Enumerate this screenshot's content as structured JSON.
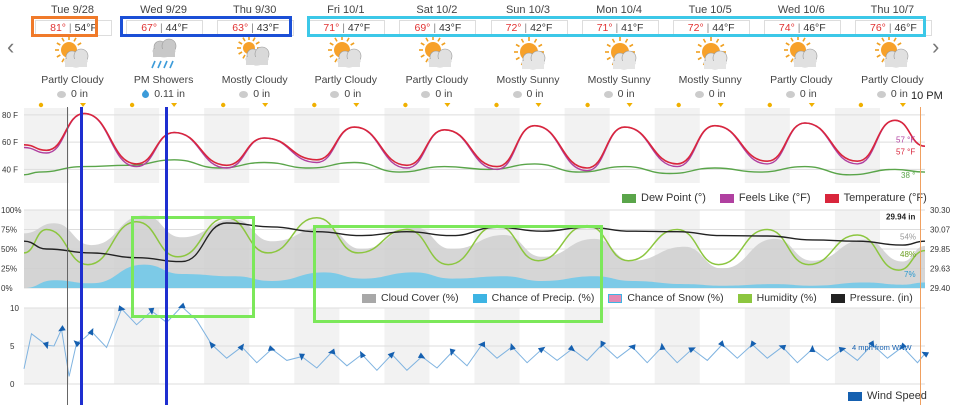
{
  "days": [
    {
      "date": "Tue 9/28",
      "hi": "81°",
      "lo": "54°F",
      "cond": "Partly Cloudy",
      "precip": "0 in",
      "icon": "partly-cloudy-icon"
    },
    {
      "date": "Wed 9/29",
      "hi": "67°",
      "lo": "44°F",
      "cond": "PM Showers",
      "precip": "0.11 in",
      "icon": "showers-icon"
    },
    {
      "date": "Thu 9/30",
      "hi": "63°",
      "lo": "43°F",
      "cond": "Mostly Cloudy",
      "precip": "0 in",
      "icon": "mostly-cloudy-icon"
    },
    {
      "date": "Fri 10/1",
      "hi": "71°",
      "lo": "47°F",
      "cond": "Partly Cloudy",
      "precip": "0 in",
      "icon": "partly-cloudy-icon"
    },
    {
      "date": "Sat 10/2",
      "hi": "69°",
      "lo": "43°F",
      "cond": "Partly Cloudy",
      "precip": "0 in",
      "icon": "partly-cloudy-icon"
    },
    {
      "date": "Sun 10/3",
      "hi": "72°",
      "lo": "42°F",
      "cond": "Mostly Sunny",
      "precip": "0 in",
      "icon": "mostly-sunny-icon"
    },
    {
      "date": "Mon 10/4",
      "hi": "71°",
      "lo": "41°F",
      "cond": "Mostly Sunny",
      "precip": "0 in",
      "icon": "mostly-sunny-icon"
    },
    {
      "date": "Tue 10/5",
      "hi": "72°",
      "lo": "44°F",
      "cond": "Mostly Sunny",
      "precip": "0 in",
      "icon": "mostly-sunny-icon"
    },
    {
      "date": "Wed 10/6",
      "hi": "74°",
      "lo": "46°F",
      "cond": "Partly Cloudy",
      "precip": "0 in",
      "icon": "partly-cloudy-icon"
    },
    {
      "date": "Thu 10/7",
      "hi": "76°",
      "lo": "46°F",
      "cond": "Partly Cloudy",
      "precip": "0 in",
      "icon": "partly-cloudy-icon"
    }
  ],
  "nav": {
    "prev": "‹",
    "next": "›"
  },
  "time_label": "10 PM",
  "chart1": {
    "yticks": [
      "80 F",
      "60 F",
      "40 F"
    ],
    "legend": [
      "Dew Point (°)",
      "Feels Like (°F)",
      "Temperature (°F)"
    ],
    "readouts": {
      "feels": "57 °F",
      "temp": "57 °F",
      "dew": "38 °"
    }
  },
  "chart2": {
    "yticks_left": [
      "100%",
      "75%",
      "50%",
      "25%",
      "0%"
    ],
    "yticks_right": [
      "30.30",
      "30.07",
      "29.85",
      "29.63",
      "29.40"
    ],
    "legend": [
      "Cloud Cover (%)",
      "Chance of Precip. (%)",
      "Chance of Snow (%)",
      "Humidity (%)",
      "Pressure. (in)"
    ],
    "readouts": {
      "pressure": "29.94 in",
      "cloud": "54%",
      "humidity": "48%",
      "precip": "7%"
    }
  },
  "chart3": {
    "yticks": [
      "10",
      "5",
      "0"
    ],
    "legend": [
      "Wind Speed"
    ],
    "readout": "4 mph from WNW"
  },
  "colors": {
    "temperature": "#d9263c",
    "feels_like": "#b040a0",
    "dew_point": "#5aa54a",
    "cloud_cover": "#c8c8c8",
    "chance_precip": "#3db4e3",
    "chance_snow": "#e48ab4",
    "humidity": "#8cc63f",
    "pressure": "#333333",
    "wind": "#1560b0",
    "box_orange": "#f07a2a",
    "box_blue": "#1b4fd6",
    "box_cyan": "#3cc8e8",
    "box_green": "#7ce85a",
    "marker_blue": "#1e2fd0"
  },
  "chart_data": [
    {
      "type": "line",
      "x": [
        "Tue 9/28",
        "Wed 9/29",
        "Thu 9/30",
        "Fri 10/1",
        "Sat 10/2",
        "Sun 10/3",
        "Mon 10/4",
        "Tue 10/5",
        "Wed 10/6",
        "Thu 10/7"
      ],
      "series": [
        {
          "name": "Temperature (°F)",
          "values": [
            81,
            67,
            63,
            71,
            69,
            72,
            71,
            72,
            74,
            76
          ]
        },
        {
          "name": "Dew Point (°)",
          "values": [
            40,
            45,
            43,
            43,
            40,
            42,
            40,
            39,
            40,
            38
          ]
        }
      ],
      "ylim": [
        30,
        85
      ]
    },
    {
      "type": "area",
      "x": [
        "Tue 9/28",
        "Wed 9/29",
        "Thu 9/30",
        "Fri 10/1",
        "Sat 10/2",
        "Sun 10/3",
        "Mon 10/4",
        "Tue 10/5",
        "Wed 10/6",
        "Thu 10/7"
      ],
      "series": [
        {
          "name": "Cloud Cover (%)",
          "values": [
            75,
            85,
            80,
            70,
            70,
            60,
            55,
            45,
            55,
            54
          ]
        },
        {
          "name": "Chance of Precip. (%)",
          "values": [
            10,
            30,
            15,
            20,
            20,
            15,
            15,
            5,
            5,
            7
          ]
        },
        {
          "name": "Humidity (%)",
          "values": [
            55,
            65,
            70,
            70,
            55,
            60,
            60,
            55,
            55,
            48
          ]
        },
        {
          "name": "Pressure. (in)",
          "values": [
            29.85,
            29.75,
            30.15,
            30.05,
            30.05,
            30.1,
            30.1,
            30.05,
            30.0,
            29.94
          ]
        }
      ],
      "ylim": [
        0,
        100
      ]
    },
    {
      "type": "line",
      "x": [
        "Tue 9/28",
        "Wed 9/29",
        "Thu 9/30",
        "Fri 10/1",
        "Sat 10/2",
        "Sun 10/3",
        "Mon 10/4",
        "Tue 10/5",
        "Wed 10/6",
        "Thu 10/7"
      ],
      "series": [
        {
          "name": "Wind Speed",
          "values": [
            6,
            9,
            4,
            3,
            3,
            4,
            4,
            4,
            4,
            4
          ]
        }
      ],
      "ylim": [
        0,
        10
      ]
    }
  ]
}
